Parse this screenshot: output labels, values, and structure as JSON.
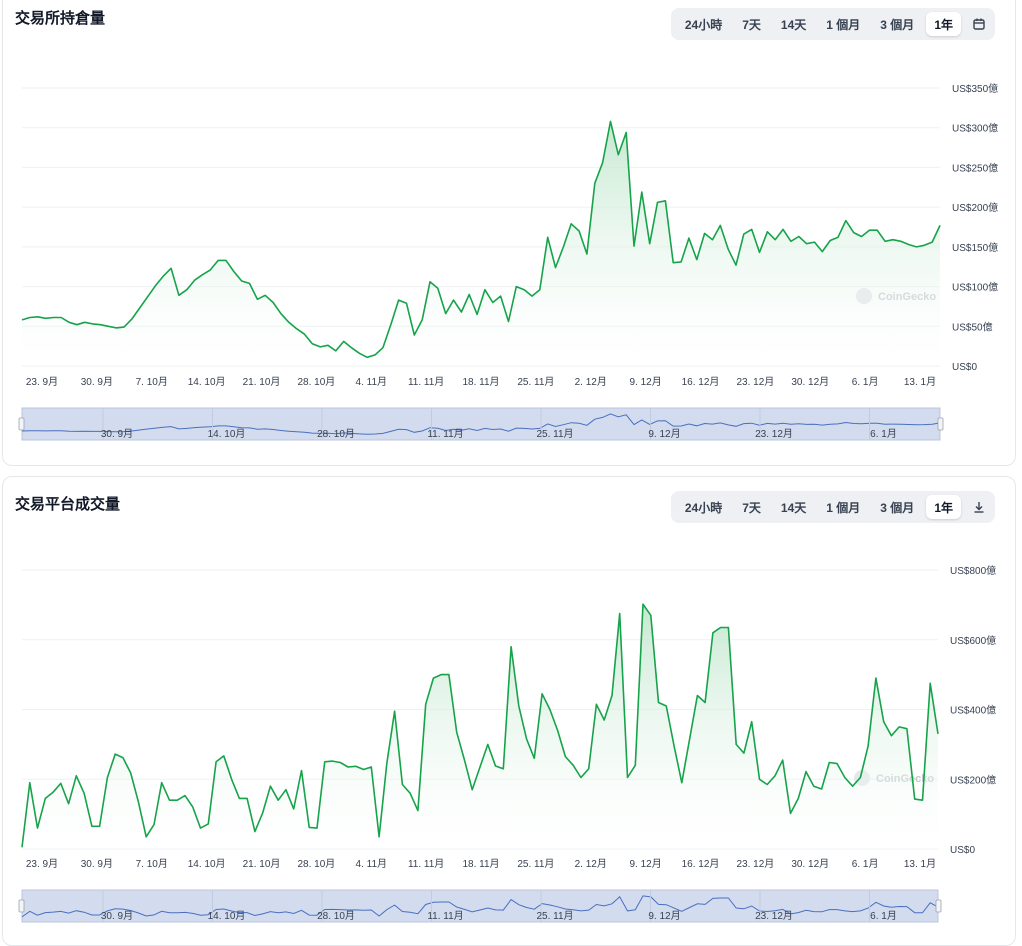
{
  "range_options": [
    "24小時",
    "7天",
    "14天",
    "1 個月",
    "3 個月",
    "1年"
  ],
  "range_selected": "1年",
  "watermark": "CoinGecko",
  "colors": {
    "line": "#16a34a",
    "fill_top": "#bfe6cc",
    "navigator_fill": "#d3dcee",
    "navigator_line": "#4a6fc0",
    "grid": "#eef0f2"
  },
  "icons": {
    "open_interest_action": "calendar-icon",
    "volume_action": "download-icon"
  },
  "navigator_labels": [
    "30. 9月",
    "14. 10月",
    "28. 10月",
    "11. 11月",
    "25. 11月",
    "9. 12月",
    "23. 12月",
    "6. 1月"
  ],
  "charts": [
    {
      "id": "open-interest",
      "title": "交易所持倉量",
      "chart_data": {
        "type": "area",
        "title": "交易所持倉量",
        "x_ticks": [
          "23. 9月",
          "30. 9月",
          "7. 10月",
          "14. 10月",
          "21. 10月",
          "28. 10月",
          "4. 11月",
          "11. 11月",
          "18. 11月",
          "25. 11月",
          "2. 12月",
          "9. 12月",
          "16. 12月",
          "23. 12月",
          "30. 12月",
          "6. 1月",
          "13. 1月"
        ],
        "y_ticks": [
          "US$0",
          "US$50億",
          "US$100億",
          "US$150億",
          "US$200億",
          "US$250億",
          "US$300億",
          "US$350億"
        ],
        "ylim": [
          0,
          350
        ],
        "unit": "US$億",
        "grid": true,
        "values": [
          58,
          61,
          62,
          60,
          61,
          61,
          55,
          52,
          55,
          53,
          52,
          50,
          48,
          49,
          59,
          73,
          87,
          101,
          113,
          123,
          89,
          96,
          108,
          115,
          121,
          133,
          133,
          119,
          107,
          104,
          84,
          89,
          80,
          66,
          55,
          47,
          40,
          28,
          24,
          26,
          19,
          31,
          23,
          16,
          11,
          14,
          23,
          52,
          83,
          79,
          39,
          58,
          106,
          98,
          66,
          83,
          68,
          90,
          65,
          96,
          80,
          88,
          56,
          100,
          96,
          88,
          96,
          162,
          124,
          150,
          179,
          170,
          141,
          230,
          256,
          308,
          266,
          294,
          151,
          219,
          154,
          206,
          208,
          130,
          131,
          161,
          134,
          167,
          159,
          177,
          147,
          127,
          166,
          172,
          143,
          169,
          159,
          172,
          157,
          163,
          154,
          156,
          144,
          158,
          162,
          183,
          168,
          163,
          171,
          171,
          157,
          159,
          157,
          153,
          150,
          152,
          156,
          177
        ]
      }
    },
    {
      "id": "volume",
      "title": "交易平台成交量",
      "chart_data": {
        "type": "area",
        "title": "交易平台成交量",
        "x_ticks": [
          "23. 9月",
          "30. 9月",
          "7. 10月",
          "14. 10月",
          "21. 10月",
          "28. 10月",
          "4. 11月",
          "11. 11月",
          "18. 11月",
          "25. 11月",
          "2. 12月",
          "9. 12月",
          "16. 12月",
          "23. 12月",
          "30. 12月",
          "6. 1月",
          "13. 1月"
        ],
        "y_ticks": [
          "US$0",
          "US$200億",
          "US$400億",
          "US$600億",
          "US$800億"
        ],
        "ylim": [
          0,
          800
        ],
        "unit": "US$億",
        "grid": true,
        "values": [
          5,
          190,
          60,
          145,
          163,
          188,
          130,
          210,
          160,
          65,
          65,
          205,
          272,
          262,
          218,
          135,
          35,
          70,
          190,
          140,
          140,
          153,
          120,
          60,
          72,
          250,
          267,
          200,
          145,
          145,
          50,
          103,
          180,
          140,
          170,
          115,
          225,
          62,
          60,
          250,
          252,
          248,
          235,
          237,
          228,
          235,
          35,
          245,
          395,
          185,
          160,
          110,
          415,
          490,
          500,
          500,
          335,
          255,
          170,
          235,
          300,
          238,
          230,
          580,
          410,
          315,
          260,
          445,
          400,
          340,
          265,
          240,
          205,
          230,
          415,
          370,
          440,
          675,
          205,
          240,
          702,
          670,
          420,
          410,
          295,
          190,
          315,
          440,
          420,
          620,
          635,
          635,
          300,
          275,
          365,
          200,
          185,
          210,
          255,
          102,
          145,
          222,
          180,
          172,
          248,
          245,
          205,
          180,
          205,
          295,
          490,
          365,
          325,
          350,
          345,
          143,
          140,
          475,
          330
        ]
      }
    }
  ]
}
